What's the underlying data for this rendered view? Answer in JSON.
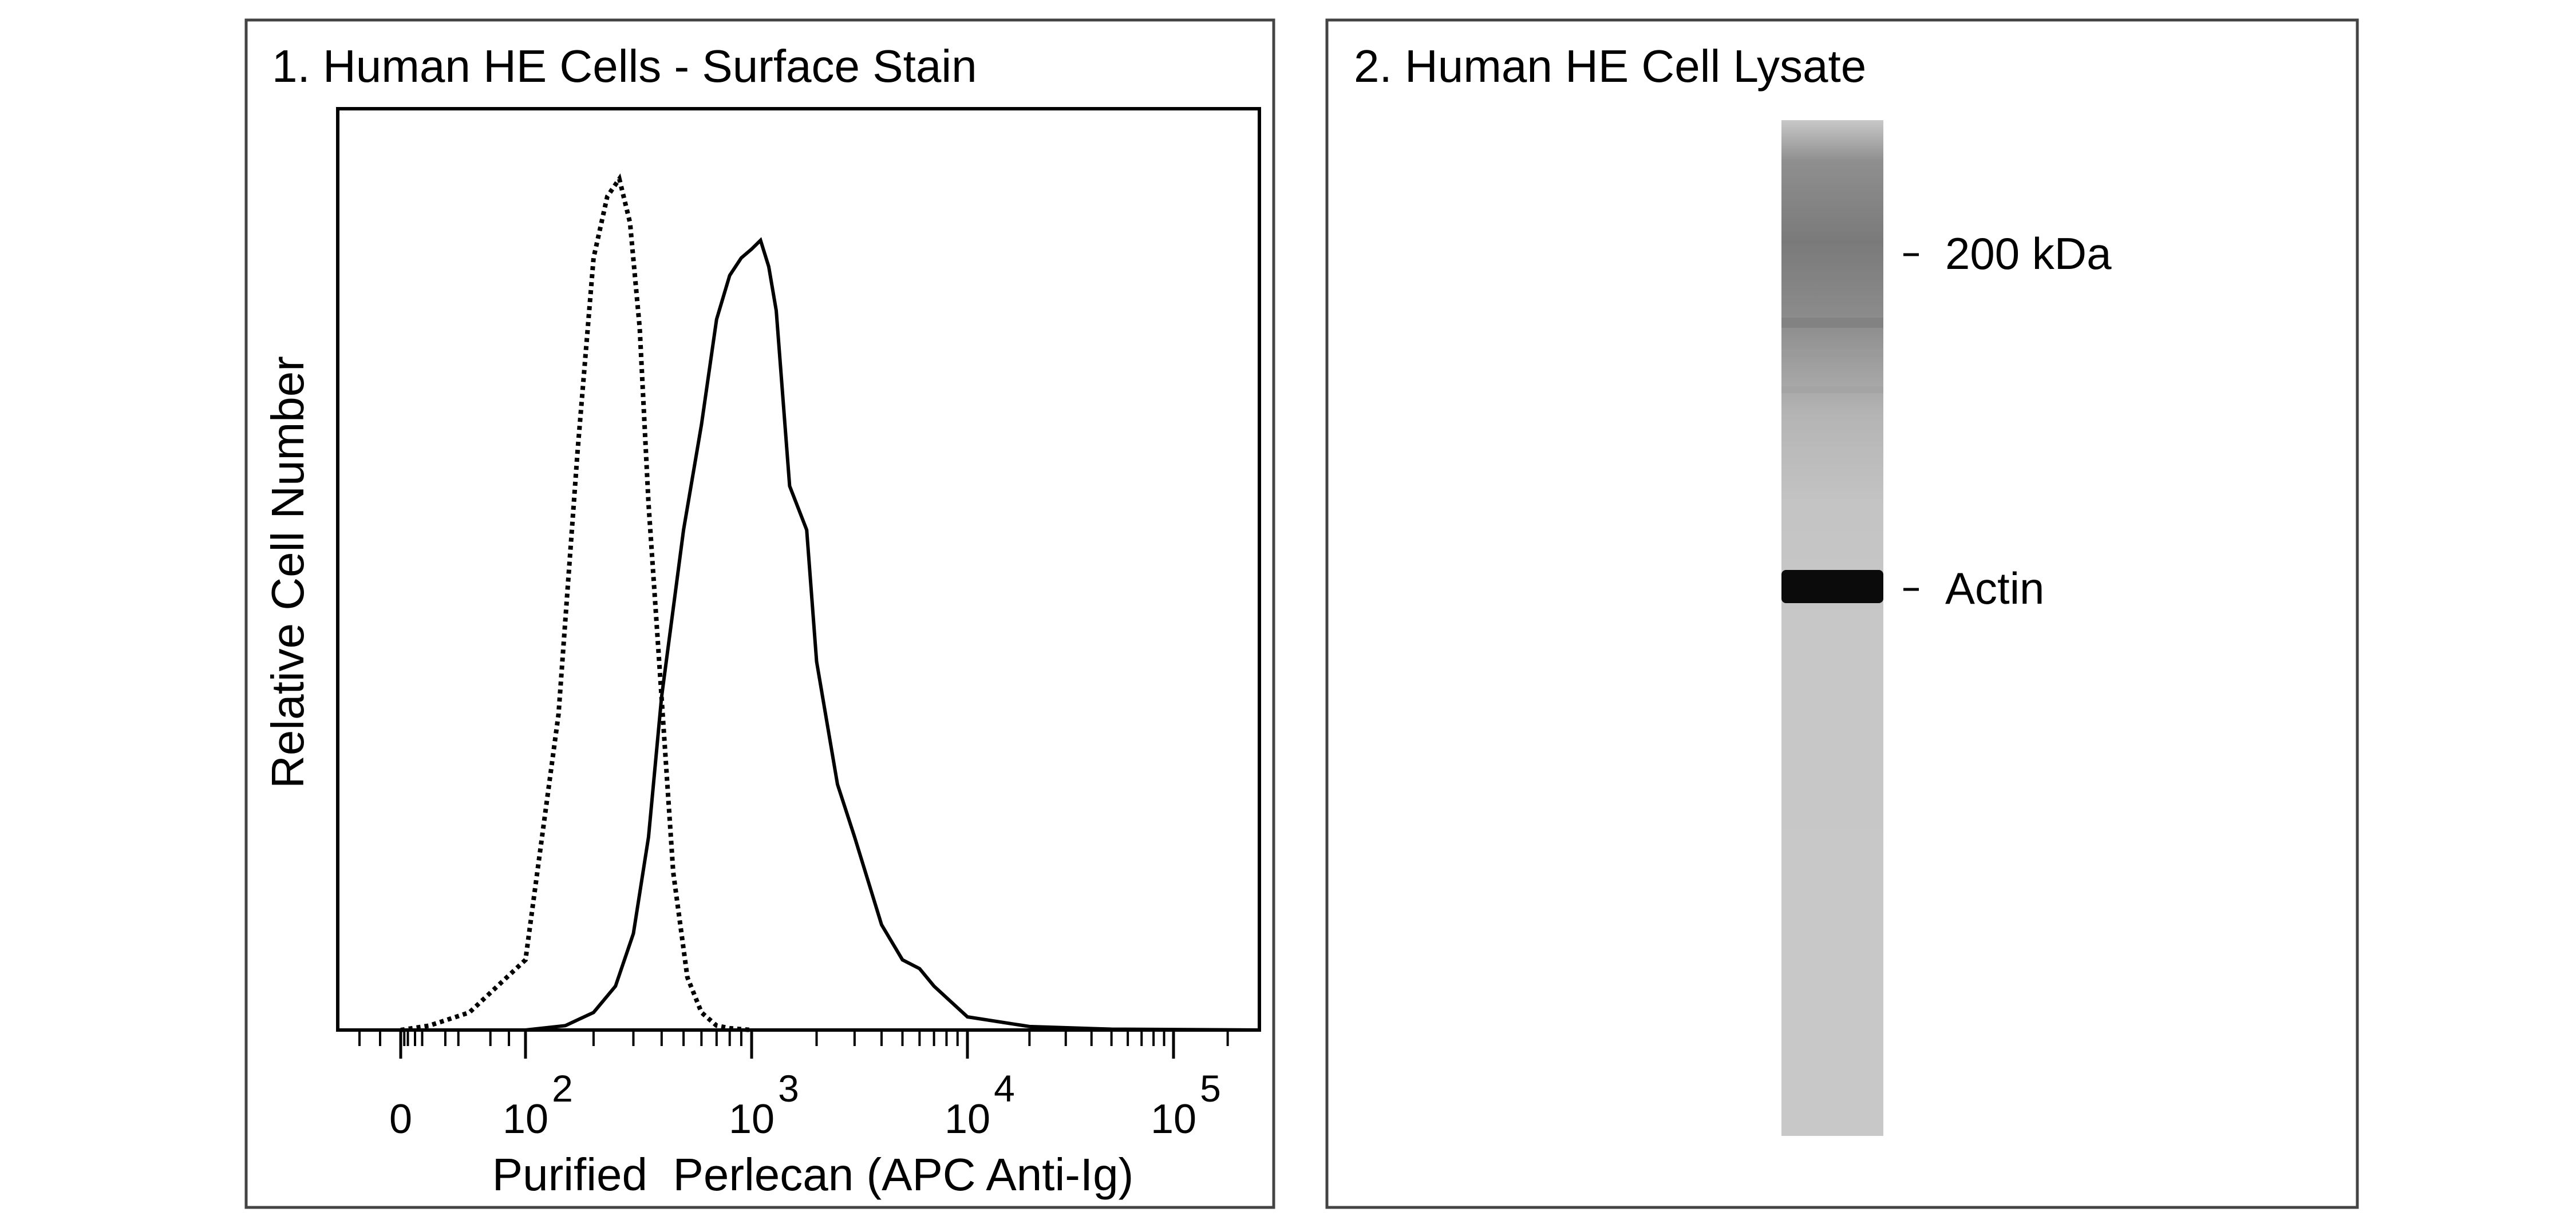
{
  "panels": [
    {
      "title": "1. Human HE Cells - Surface Stain",
      "ylabel": "Relative Cell Number",
      "xlabel": "Purified  Perlecan (APC Anti-Ig)"
    },
    {
      "title": "2. Human HE Cell Lysate",
      "markers": [
        {
          "label": "200 kDa"
        },
        {
          "label": "Actin"
        }
      ]
    }
  ],
  "chart_data": [
    {
      "type": "line",
      "title": "1. Human HE Cells - Surface Stain",
      "xlabel": "Purified  Perlecan (APC Anti-Ig)",
      "ylabel": "Relative Cell Number",
      "x_scale": "biexponential (log above ~10^2)",
      "xlim": [
        -30,
        300000
      ],
      "ylim": [
        0,
        1.05
      ],
      "x_ticks": [
        {
          "value": 0,
          "base": "0",
          "exp": ""
        },
        {
          "value": 100,
          "base": "10",
          "exp": "2"
        },
        {
          "value": 1000,
          "base": "10",
          "exp": "3"
        },
        {
          "value": 10000,
          "base": "10",
          "exp": "4"
        },
        {
          "value": 100000,
          "base": "10",
          "exp": "5"
        }
      ],
      "series": [
        {
          "style": "dotted",
          "color": "#000000",
          "x": [
            0,
            40,
            70,
            100,
            140,
            170,
            200,
            230,
            260,
            290,
            320,
            350,
            390,
            450,
            520,
            600,
            700,
            800,
            1000
          ],
          "y": [
            0.0,
            0.005,
            0.02,
            0.08,
            0.36,
            0.66,
            0.88,
            0.95,
            0.97,
            0.92,
            0.8,
            0.6,
            0.42,
            0.18,
            0.06,
            0.02,
            0.005,
            0.002,
            0.0
          ]
        },
        {
          "style": "solid",
          "color": "#000000",
          "x": [
            0,
            100,
            150,
            200,
            250,
            300,
            350,
            400,
            450,
            500,
            600,
            700,
            800,
            900,
            1000,
            1100,
            1200,
            1300,
            1500,
            1800,
            2000,
            2500,
            3000,
            4000,
            5000,
            6000,
            7000,
            10000,
            20000,
            50000,
            300000
          ],
          "y": [
            0.0,
            0.0,
            0.005,
            0.02,
            0.05,
            0.11,
            0.22,
            0.38,
            0.48,
            0.57,
            0.69,
            0.81,
            0.86,
            0.88,
            0.89,
            0.9,
            0.87,
            0.82,
            0.62,
            0.57,
            0.42,
            0.28,
            0.22,
            0.12,
            0.08,
            0.07,
            0.05,
            0.015,
            0.004,
            0.001,
            0.0
          ]
        }
      ]
    }
  ]
}
